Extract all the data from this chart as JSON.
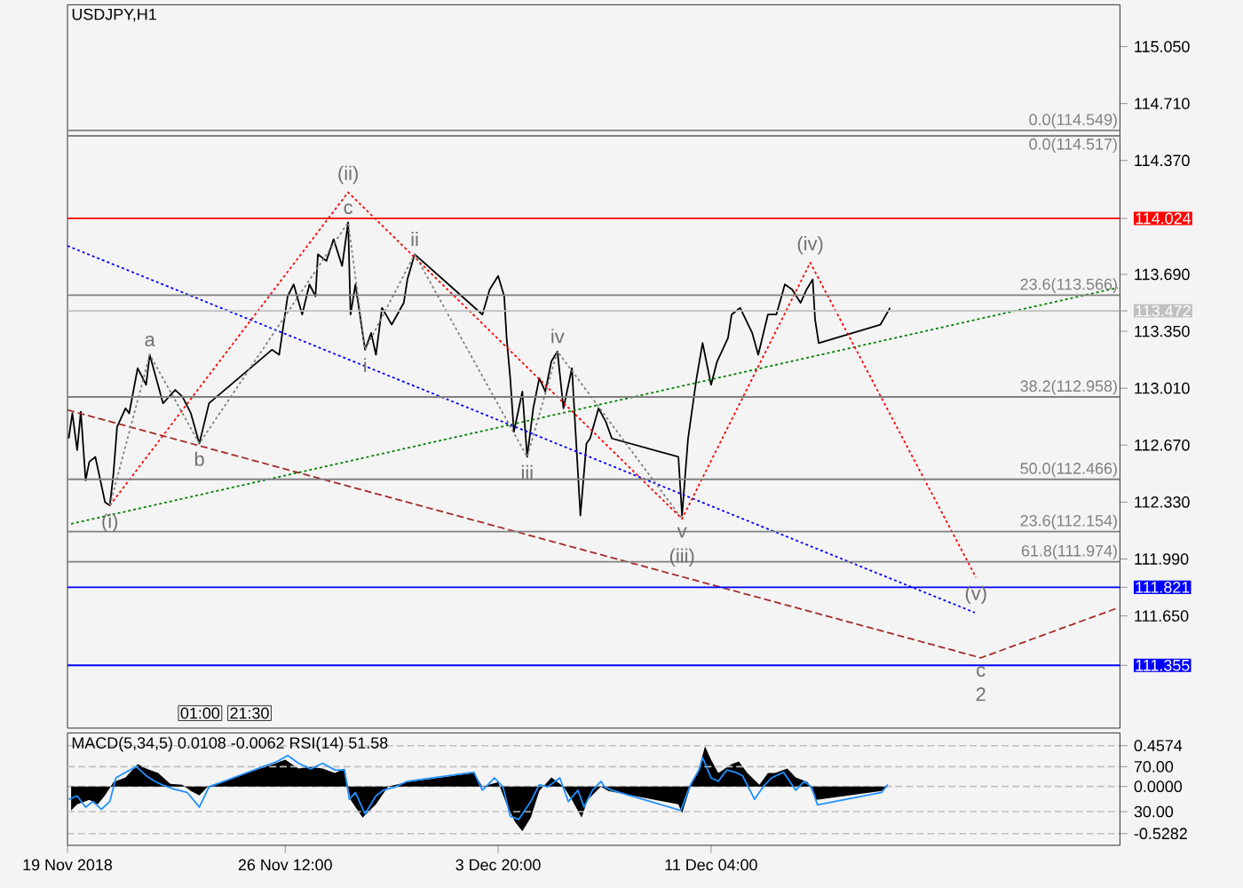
{
  "chart_data": [
    {
      "type": "line",
      "title": "USDJPY,H1",
      "xlim": [
        "2018-11-19T00:00",
        "2018-12-25T06:00"
      ],
      "ylim": [
        110.98,
        115.3
      ],
      "tick_labels": "y",
      "yticks": [
        {
          "value": 115.05,
          "label": "115.050"
        },
        {
          "value": 114.71,
          "label": "114.710"
        },
        {
          "value": 114.37,
          "label": "114.370"
        },
        114.024,
        {
          "value": 113.69,
          "label": "113.690"
        },
        113.472,
        {
          "value": 113.35,
          "label": "113.350"
        },
        {
          "value": 113.01,
          "label": "113.010"
        },
        {
          "value": 112.67,
          "label": "112.670"
        },
        {
          "value": 112.33,
          "label": "112.330"
        },
        {
          "value": 111.99,
          "label": "111.990"
        },
        111.821,
        {
          "value": 111.65,
          "label": "111.650"
        },
        111.355
      ],
      "series": [
        {
          "color": "#000000",
          "x": [
            "2018-11-19T01:00",
            "2018-11-19T04:00",
            "2018-11-19T08:00",
            "2018-11-19T11:00",
            "2018-11-19T15:00",
            "2018-11-19T18:00",
            "2018-11-19T23:00",
            "2018-11-20T02:00",
            "2018-11-20T07:00",
            "2018-11-20T11:00",
            "2018-11-20T14:00",
            "2018-11-20T17:00",
            "2018-11-21T00:00",
            "2018-11-21T03:00",
            "2018-11-21T10:00",
            "2018-11-21T17:00",
            "2018-11-21T20:00",
            "2018-11-22T07:00",
            "2018-11-22T17:00",
            "2018-11-22T23:00",
            "2018-11-23T06:00",
            "2018-11-23T13:00",
            "2018-11-23T21:00",
            "2018-11-26T01:00",
            "2018-11-26T07:00",
            "2018-11-26T14:00",
            "2018-11-26T19:00",
            "2018-11-27T02:00",
            "2018-11-27T08:00",
            "2018-11-27T13:00",
            "2018-11-27T15:00",
            "2018-11-27T22:00",
            "2018-11-28T04:00",
            "2018-11-28T11:00",
            "2018-11-28T16:00",
            "2018-11-28T18:00",
            "2018-11-28T22:00",
            "2018-11-29T06:00",
            "2018-11-29T11:00",
            "2018-11-29T15:00",
            "2018-11-29T20:00",
            "2018-11-30T04:00",
            "2018-11-30T14:00",
            "2018-11-30T17:00",
            "2018-11-30T23:00",
            "2018-12-03T07:00",
            "2018-12-03T13:00",
            "2018-12-03T20:00",
            "2018-12-04T01:00",
            "2018-12-04T03:00",
            "2018-12-04T06:00",
            "2018-12-04T09:00",
            "2018-12-04T16:00",
            "2018-12-04T20:00",
            "2018-12-05T01:00",
            "2018-12-05T06:00",
            "2018-12-05T11:00",
            "2018-12-05T16:00",
            "2018-12-05T21:00",
            "2018-12-06T02:00",
            "2018-12-06T09:00",
            "2018-12-06T12:00",
            "2018-12-06T16:00",
            "2018-12-06T21:00",
            "2018-12-07T00:00",
            "2018-12-07T07:00",
            "2018-12-07T13:00",
            "2018-12-07T18:00",
            "2018-12-10T01:00",
            "2018-12-10T04:00",
            "2018-12-10T09:00",
            "2018-12-10T16:00",
            "2018-12-10T21:00",
            "2018-12-11T04:00",
            "2018-12-11T09:00",
            "2018-12-11T18:00",
            "2018-12-11T21:00",
            "2018-12-12T04:00",
            "2018-12-12T14:00",
            "2018-12-12T19:00",
            "2018-12-13T03:00",
            "2018-12-13T10:00",
            "2018-12-13T17:00",
            "2018-12-13T23:00",
            "2018-12-14T06:00",
            "2018-12-14T11:00",
            "2018-12-14T16:00",
            "2018-12-14T18:00",
            "2018-12-14T21:00",
            "2018-12-17T00:00",
            "2018-12-17T08:00"
          ],
          "values": [
            112.71,
            112.86,
            112.64,
            112.87,
            112.46,
            112.57,
            112.6,
            112.5,
            112.33,
            112.31,
            112.5,
            112.78,
            112.89,
            112.86,
            113.13,
            113.03,
            113.21,
            112.92,
            113.0,
            112.96,
            112.86,
            112.68,
            112.92,
            113.24,
            113.21,
            113.56,
            113.63,
            113.45,
            113.63,
            113.56,
            113.81,
            113.77,
            113.9,
            113.74,
            114.0,
            113.45,
            113.63,
            113.24,
            113.34,
            113.21,
            113.49,
            113.39,
            113.52,
            113.66,
            113.81,
            113.45,
            113.6,
            113.68,
            113.56,
            113.31,
            113.07,
            112.75,
            112.99,
            112.6,
            112.89,
            113.07,
            112.99,
            113.17,
            113.23,
            112.89,
            113.13,
            112.75,
            112.25,
            112.68,
            112.71,
            112.89,
            112.81,
            112.71,
            112.6,
            112.25,
            112.71,
            113.07,
            113.28,
            113.03,
            113.17,
            113.31,
            113.45,
            113.49,
            113.34,
            113.21,
            113.45,
            113.45,
            113.63,
            113.6,
            113.52,
            113.6,
            113.66,
            113.42,
            113.28,
            113.39,
            113.49
          ]
        },
        {
          "color": "#008000",
          "line_style": "dotted",
          "x": [
            "2018-11-19T03:00",
            "2018-12-25T04:00"
          ],
          "values": [
            112.2,
            113.61
          ]
        },
        {
          "color": "#0000ff",
          "line_style": "dotted",
          "x": [
            "2018-11-19T00:00",
            "2018-12-20T06:00"
          ],
          "values": [
            113.86,
            111.67
          ]
        },
        {
          "color": "#a52a2a",
          "line_style": "dashed",
          "x": [
            "2018-11-19T00:00",
            "2018-12-20T11:00",
            "2018-12-25T05:00"
          ],
          "values": [
            112.88,
            111.4,
            111.7
          ]
        },
        {
          "color": "#ff0000",
          "line_style": "dotted",
          "x": [
            "2018-11-20T11:00",
            "2018-11-28T16:00",
            "2018-12-10T04:00",
            "2018-12-14T14:00",
            "2018-12-20T07:00"
          ],
          "values": [
            112.31,
            114.18,
            112.23,
            113.76,
            111.88
          ]
        },
        {
          "color": "#808080",
          "line_style": "dotted",
          "x": [
            "2018-11-20T11:00",
            "2018-11-21T20:00",
            "2018-11-23T13:00",
            "2018-11-28T16:00",
            "2018-11-29T06:00",
            "2018-11-30T23:00",
            "2018-12-04T20:00",
            "2018-12-05T21:00",
            "2018-12-10T04:00"
          ],
          "values": [
            112.31,
            113.21,
            112.68,
            114.0,
            113.24,
            113.81,
            112.6,
            113.23,
            112.23
          ]
        }
      ],
      "ref_lines": [
        {
          "axis": "y",
          "value": 114.549,
          "label": "0.0(114.549)",
          "color": "#808080"
        },
        {
          "axis": "y",
          "value": 114.517,
          "label": "0.0(114.517)",
          "color": "#808080"
        },
        {
          "axis": "y",
          "value": 114.024,
          "color": "#ff0000"
        },
        {
          "axis": "y",
          "value": 113.566,
          "label": "23.6(113.566)",
          "color": "#808080"
        },
        {
          "axis": "y",
          "value": 113.472,
          "color": "#c0c0c0"
        },
        {
          "axis": "y",
          "value": 112.958,
          "label": "38.2(112.958)",
          "color": "#808080"
        },
        {
          "axis": "y",
          "value": 112.466,
          "label": "50.0(112.466)",
          "color": "#808080"
        },
        {
          "axis": "y",
          "value": 112.154,
          "label": "23.6(112.154)",
          "color": "#808080"
        },
        {
          "axis": "y",
          "value": 111.974,
          "label": "61.8(111.974)",
          "color": "#808080"
        },
        {
          "axis": "y",
          "value": 111.821,
          "color": "#0000ff"
        },
        {
          "axis": "y",
          "value": 111.355,
          "color": "#0000ff"
        }
      ],
      "annotations": [
        {
          "text": "(i)",
          "x": "2018-11-20T11:00",
          "y": 112.31
        },
        {
          "text": "a",
          "x": "2018-11-21T20:00",
          "y": 113.21
        },
        {
          "text": "b",
          "x": "2018-11-23T13:00",
          "y": 112.68
        },
        {
          "text": "(ii)",
          "x": "2018-11-28T16:00",
          "y": 114.18
        },
        {
          "text": "c",
          "x": "2018-11-28T16:00",
          "y": 114.0
        },
        {
          "text": "i",
          "x": "2018-11-29T06:00",
          "y": 113.24
        },
        {
          "text": "ii",
          "x": "2018-11-30T23:00",
          "y": 113.81
        },
        {
          "text": "iii",
          "x": "2018-12-04T20:00",
          "y": 112.6
        },
        {
          "text": "iv",
          "x": "2018-12-05T21:00",
          "y": 113.23
        },
        {
          "text": "v",
          "x": "2018-12-10T04:00",
          "y": 112.23
        },
        {
          "text": "(iii)",
          "x": "2018-12-10T04:00",
          "y": 112.23
        },
        {
          "text": "(iv)",
          "x": "2018-12-14T14:00",
          "y": 113.76
        },
        {
          "text": "(v)",
          "x": "2018-12-20T07:00",
          "y": 111.88
        },
        {
          "text": "c",
          "x": "2018-12-20T11:00",
          "y": 111.4
        },
        {
          "text": "2",
          "x": "2018-12-20T11:00",
          "y": 111.4
        },
        "01:00",
        "21:30"
      ]
    },
    {
      "type": "area",
      "title": "MACD(5,34,5) 0.0108 -0.0062 RSI(14) 51.58",
      "xlim": [
        "2018-11-19T00:00",
        "2018-12-25T06:00"
      ],
      "ylim": [
        -0.66,
        0.6
      ],
      "y2lim": [
        0,
        100
      ],
      "xticks": [
        {
          "value": "2018-11-19T00:00",
          "label": "19 Nov 2018"
        },
        {
          "value": "2018-11-26T12:00",
          "label": "26 Nov 12:00"
        },
        {
          "value": "2018-12-03T20:00",
          "label": "3 Dec 20:00"
        },
        {
          "value": "2018-12-11T04:00",
          "label": "11 Dec 04:00"
        }
      ],
      "yticks": [
        0.4574,
        {
          "value": 0,
          "label": "0.0000"
        },
        -0.5282
      ],
      "y2ticks": [
        {
          "value": 70,
          "label": "70.00"
        },
        {
          "value": 30,
          "label": "30.00"
        }
      ],
      "series": [
        {
          "color": "#000000",
          "x": [
            "2018-11-19T03:00",
            "2018-11-19T08:00",
            "2018-11-19T18:00",
            "2018-11-20T01:00",
            "2018-11-20T07:00",
            "2018-11-20T14:00",
            "2018-11-21T00:00",
            "2018-11-21T10:00",
            "2018-11-21T17:00",
            "2018-11-22T03:00",
            "2018-11-22T13:00",
            "2018-11-22T23:00",
            "2018-11-23T06:00",
            "2018-11-23T13:00",
            "2018-11-23T20:00",
            "2018-11-26T02:00",
            "2018-11-26T12:00",
            "2018-11-26T23:00",
            "2018-11-27T09:00",
            "2018-11-27T19:00",
            "2018-11-28T05:00",
            "2018-11-28T13:00",
            "2018-11-28T18:00",
            "2018-11-29T04:00",
            "2018-11-29T15:00",
            "2018-11-30T01:00",
            "2018-11-30T17:00",
            "2018-12-03T00:00",
            "2018-12-03T07:00",
            "2018-12-03T20:00",
            "2018-12-04T03:00",
            "2018-12-04T10:00",
            "2018-12-04T16:00",
            "2018-12-04T23:00",
            "2018-12-05T06:00",
            "2018-12-05T16:00",
            "2018-12-06T02:00",
            "2018-12-06T09:00",
            "2018-12-06T17:00",
            "2018-12-06T22:00",
            "2018-12-07T09:00",
            "2018-12-07T15:00",
            "2018-12-10T01:00",
            "2018-12-10T04:00",
            "2018-12-10T11:00",
            "2018-12-10T18:00",
            "2018-12-10T23:00",
            "2018-12-11T04:00",
            "2018-12-11T10:00",
            "2018-12-11T21:00",
            "2018-12-12T03:00",
            "2018-12-12T10:00",
            "2018-12-12T20:00",
            "2018-12-13T03:00",
            "2018-12-13T09:00",
            "2018-12-13T19:00",
            "2018-12-14T02:00",
            "2018-12-14T12:00",
            "2018-12-14T19:00",
            "2018-12-17T01:00",
            "2018-12-17T05:00"
          ],
          "values": [
            -0.27,
            -0.2,
            -0.15,
            -0.2,
            -0.1,
            0.05,
            0.1,
            0.25,
            0.2,
            0.15,
            0.03,
            0.02,
            -0.05,
            -0.1,
            0.0,
            0.25,
            0.3,
            0.2,
            0.22,
            0.2,
            0.15,
            0.2,
            -0.15,
            -0.35,
            -0.2,
            0.0,
            0.05,
            0.15,
            0.0,
            0.05,
            -0.2,
            -0.4,
            -0.5,
            -0.35,
            -0.05,
            0.1,
            0.0,
            -0.15,
            -0.35,
            -0.15,
            0.0,
            -0.05,
            -0.2,
            -0.3,
            0.0,
            0.2,
            0.45,
            0.3,
            0.15,
            0.25,
            0.28,
            0.15,
            0.02,
            0.15,
            0.15,
            0.2,
            0.1,
            0.05,
            -0.15,
            -0.05,
            0.0
          ]
        },
        {
          "type": "line",
          "color": "#1e90ff",
          "axis": "y2",
          "x": [
            "2018-11-19T01:00",
            "2018-11-19T08:00",
            "2018-11-19T15:00",
            "2018-11-19T21:00",
            "2018-11-20T04:00",
            "2018-11-20T11:00",
            "2018-11-20T16:00",
            "2018-11-21T00:00",
            "2018-11-21T09:00",
            "2018-11-21T17:00",
            "2018-11-22T00:00",
            "2018-11-22T06:00",
            "2018-11-22T16:00",
            "2018-11-23T03:00",
            "2018-11-23T13:00",
            "2018-11-23T21:00",
            "2018-11-26T06:00",
            "2018-11-26T14:00",
            "2018-11-26T23:00",
            "2018-11-27T09:00",
            "2018-11-27T19:00",
            "2018-11-28T05:00",
            "2018-11-28T13:00",
            "2018-11-28T17:00",
            "2018-11-28T22:00",
            "2018-11-29T06:00",
            "2018-11-29T15:00",
            "2018-11-29T21:00",
            "2018-11-30T07:00",
            "2018-11-30T17:00",
            "2018-12-03T00:00",
            "2018-12-03T07:00",
            "2018-12-03T17:00",
            "2018-12-04T00:00",
            "2018-12-04T06:00",
            "2018-12-04T13:00",
            "2018-12-04T23:00",
            "2018-12-05T06:00",
            "2018-12-05T13:00",
            "2018-12-05T23:00",
            "2018-12-06T06:00",
            "2018-12-06T14:00",
            "2018-12-06T19:00",
            "2018-12-07T02:00",
            "2018-12-07T09:00",
            "2018-12-07T12:00",
            "2018-12-07T18:00",
            "2018-12-10T03:00",
            "2018-12-10T11:00",
            "2018-12-10T18:00",
            "2018-12-10T21:00",
            "2018-12-11T04:00",
            "2018-12-11T10:00",
            "2018-12-11T17:00",
            "2018-12-12T00:00",
            "2018-12-12T06:00",
            "2018-12-12T16:00",
            "2018-12-12T23:00",
            "2018-12-13T06:00",
            "2018-12-13T16:00",
            "2018-12-14T02:00",
            "2018-12-14T09:00",
            "2018-12-14T15:00",
            "2018-12-14T20:00",
            "2018-12-17T01:00",
            "2018-12-17T06:00"
          ],
          "values": [
            41,
            44,
            34,
            39,
            32,
            39,
            60,
            65,
            70,
            62,
            57,
            54,
            50,
            47,
            34,
            52,
            75,
            80,
            73,
            68,
            73,
            67,
            67,
            41,
            47,
            28,
            44,
            49,
            52,
            57,
            65,
            49,
            60,
            52,
            26,
            23,
            39,
            54,
            52,
            60,
            39,
            49,
            34,
            49,
            57,
            52,
            49,
            31,
            54,
            67,
            78,
            60,
            57,
            67,
            65,
            62,
            41,
            52,
            60,
            65,
            49,
            57,
            52,
            36,
            47,
            54
          ]
        }
      ],
      "grid": "y"
    }
  ]
}
